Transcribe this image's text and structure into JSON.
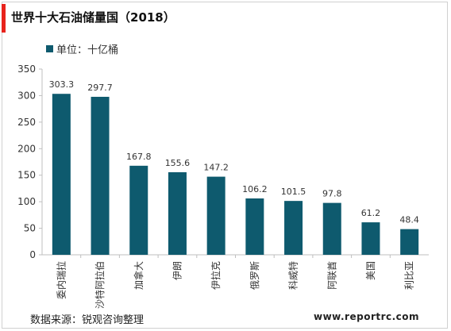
{
  "title": "世界十大石油储量国（2018）",
  "legend_label": "单位：十亿桶",
  "source": "数据来源：锐观咨询整理",
  "website": "www.reportrc.com",
  "colors": {
    "accent": "#e8231c",
    "bar": "#0e5a6e",
    "axis": "#bfbfbf",
    "text": "#333333"
  },
  "chart_data": {
    "type": "bar",
    "title": "世界十大石油储量国（2018）",
    "categories": [
      "委内瑞拉",
      "沙特阿拉伯",
      "加拿大",
      "伊朗",
      "伊拉克",
      "俄罗斯",
      "科威特",
      "阿联酋",
      "美国",
      "利比亚"
    ],
    "series": [
      {
        "name": "单位：十亿桶",
        "values": [
          303.3,
          297.7,
          167.8,
          155.6,
          147.2,
          106.2,
          101.5,
          97.8,
          61.2,
          48.4
        ]
      }
    ],
    "value_labels": [
      "303.3",
      "297.7",
      "167.8",
      "155.6",
      "147.2",
      "106.2",
      "101.5",
      "97.8",
      "61.2",
      "48.4"
    ],
    "yticks": [
      "0",
      "50",
      "100",
      "150",
      "200",
      "250",
      "300",
      "350"
    ],
    "ylim": [
      0,
      350
    ],
    "xlabel": "",
    "ylabel": "",
    "grid": false,
    "legend_position": "top-left"
  }
}
